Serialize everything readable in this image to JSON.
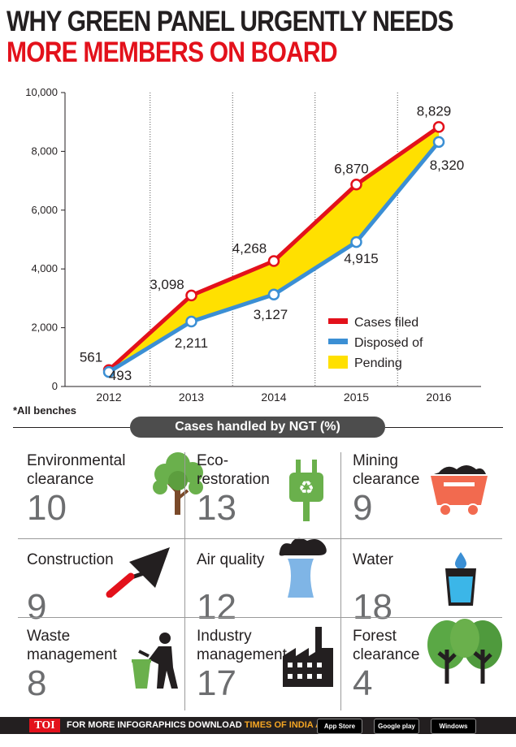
{
  "title": {
    "line1": "WHY GREEN PANEL URGENTLY NEEDS",
    "line2": "MORE MEMBERS ON BOARD"
  },
  "chart_data": {
    "type": "line",
    "categories": [
      "2012",
      "2013",
      "2014",
      "2015",
      "2016"
    ],
    "series": [
      {
        "name": "Cases filed",
        "values": [
          561,
          3098,
          4268,
          6870,
          8829
        ],
        "labels": [
          "561",
          "3,098",
          "4,268",
          "6,870",
          "8,829"
        ],
        "color": "#e3111b"
      },
      {
        "name": "Disposed of",
        "values": [
          493,
          2211,
          3127,
          4915,
          8320
        ],
        "labels": [
          "493",
          "2,211",
          "3,127",
          "4,915",
          "8,320"
        ],
        "color": "#3b8fd4"
      }
    ],
    "fill": {
      "name": "Pending",
      "color": "#ffe000"
    },
    "ylim": [
      0,
      10000
    ],
    "yticks": [
      0,
      2000,
      4000,
      6000,
      8000,
      10000
    ],
    "ytick_labels": [
      "0",
      "2,000",
      "4,000",
      "6,000",
      "8,000",
      "10,000"
    ],
    "legend_position": "bottom-right",
    "gridlines": "vertical dotted"
  },
  "footnote": "*All benches",
  "section_title": "Cases handled by NGT (%)",
  "categories": [
    {
      "label": "Environmental\nclearance",
      "value": "10",
      "icon": "tree-icon"
    },
    {
      "label": "Eco-\nrestoration",
      "value": "13",
      "icon": "recycle-plug-icon"
    },
    {
      "label": "Mining\nclearance",
      "value": "9",
      "icon": "mine-cart-icon"
    },
    {
      "label": "Construction",
      "value": "9",
      "icon": "trowel-icon"
    },
    {
      "label": "Air quality",
      "value": "12",
      "icon": "smokestack-icon"
    },
    {
      "label": "Water",
      "value": "18",
      "icon": "water-glass-icon"
    },
    {
      "label": "Waste\nmanagement",
      "value": "8",
      "icon": "waste-bin-icon"
    },
    {
      "label": "Industry\nmanagement",
      "value": "17",
      "icon": "factory-icon"
    },
    {
      "label": "Forest\nclearance",
      "value": "4",
      "icon": "forest-icon"
    }
  ],
  "footer": {
    "logo": "TOI",
    "text": "FOR MORE  INFOGRAPHICS DOWNLOAD ",
    "app": "TIMES OF INDIA APP",
    "badges": [
      "App Store",
      "Google play",
      "Windows Phone"
    ]
  },
  "colors": {
    "red": "#e3111b",
    "blue": "#3b8fd4",
    "yellow": "#ffe000",
    "green": "#6ab04c",
    "orange": "#f26a4f"
  }
}
